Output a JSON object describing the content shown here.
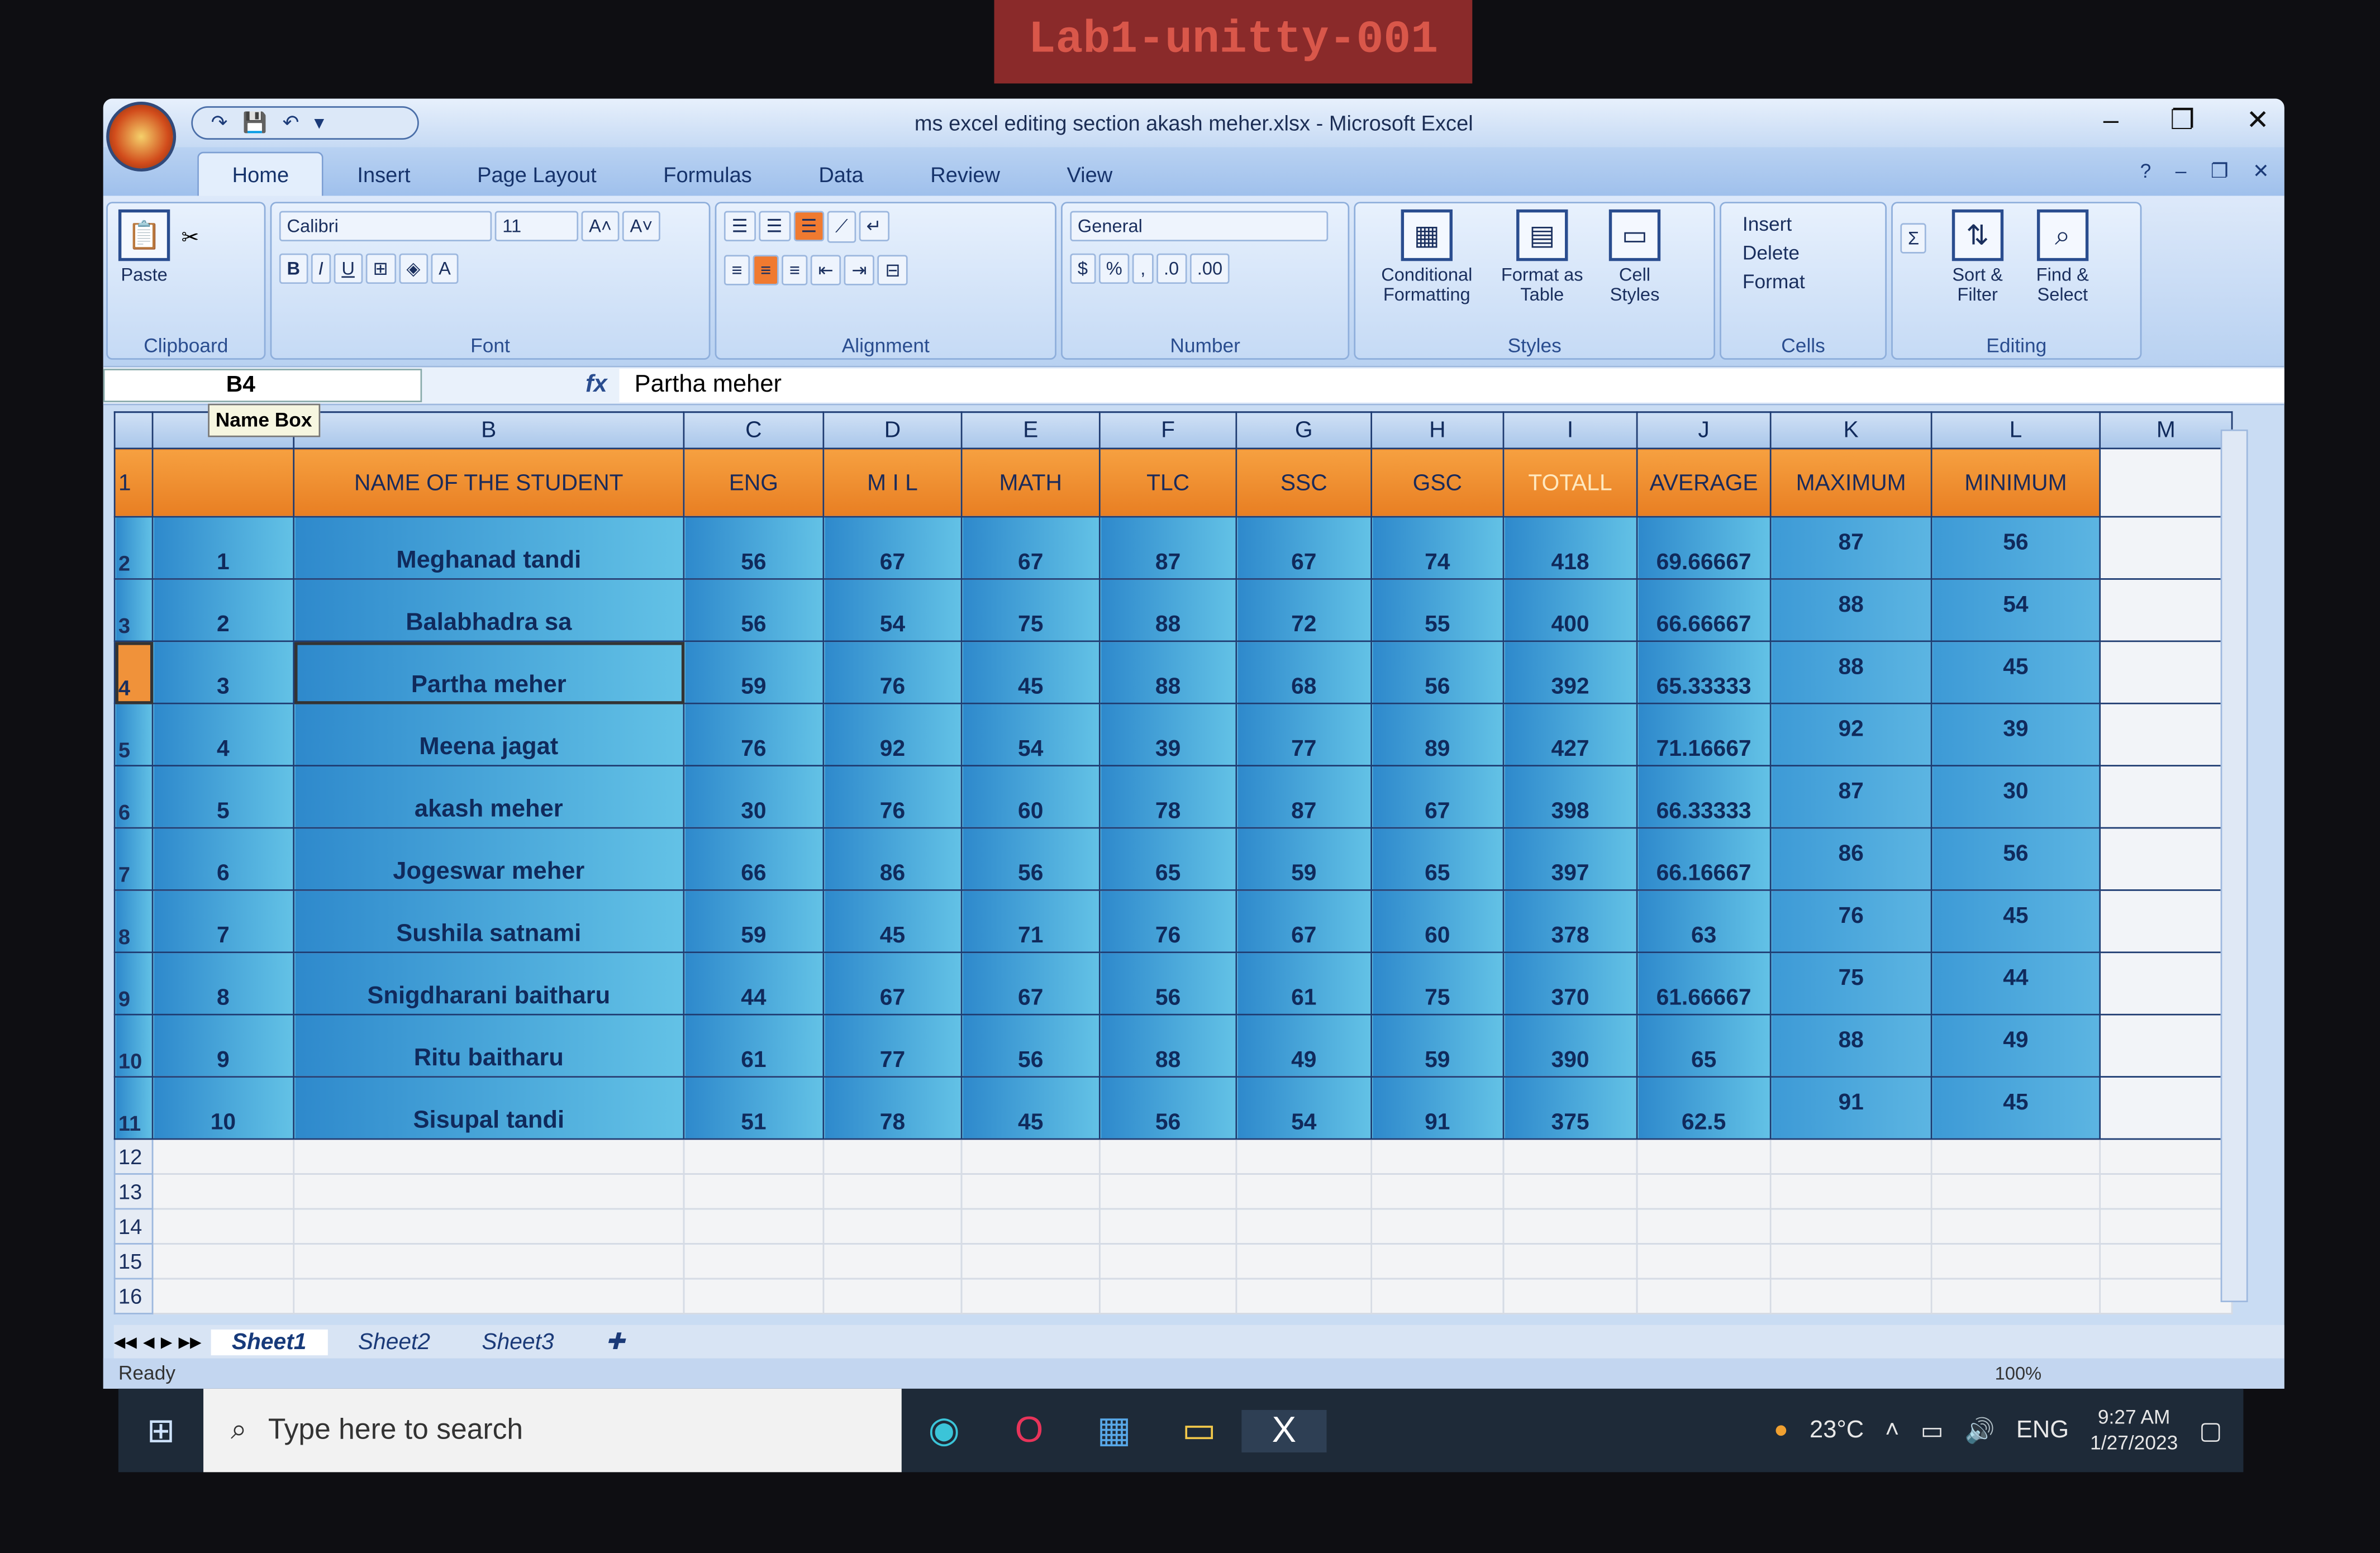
{
  "sticker": "Lab1-unitty-001",
  "window": {
    "title": "ms excel editing section akash meher.xlsx - Microsoft Excel"
  },
  "tabs": [
    "Home",
    "Insert",
    "Page Layout",
    "Formulas",
    "Data",
    "Review",
    "View"
  ],
  "ribbon": {
    "clipboard": {
      "paste": "Paste",
      "label": "Clipboard"
    },
    "font": {
      "name": "Calibri",
      "size": "11",
      "bold": "B",
      "italic": "I",
      "underline": "U",
      "label": "Font"
    },
    "alignment": {
      "label": "Alignment"
    },
    "number": {
      "format": "General",
      "currency": "$",
      "percent": "%",
      "comma": ",",
      "label": "Number"
    },
    "styles": {
      "conditional": "Conditional Formatting",
      "format_table": "Format as Table",
      "cell_styles": "Cell Styles",
      "label": "Styles"
    },
    "cells": {
      "insert": "Insert",
      "delete": "Delete",
      "format": "Format",
      "label": "Cells"
    },
    "editing": {
      "sum": "Σ",
      "sort": "Sort & Filter",
      "find": "Find & Select",
      "label": "Editing"
    }
  },
  "formula_bar": {
    "name_box": "B4",
    "tooltip": "Name Box",
    "fx": "fx",
    "value": "Partha meher"
  },
  "columns": [
    "",
    "B",
    "C",
    "D",
    "E",
    "F",
    "G",
    "H",
    "I",
    "J",
    "K",
    "L",
    "M"
  ],
  "header_row": [
    "",
    "NAME OF THE STUDENT",
    "ENG",
    "M I L",
    "MATH",
    "TLC",
    "SSC",
    "GSC",
    "TOTALL",
    "AVERAGE",
    "MAXIMUM",
    "MINIMUM"
  ],
  "rows": [
    [
      "1",
      "Meghanad tandi",
      "56",
      "67",
      "67",
      "87",
      "67",
      "74",
      "418",
      "69.66667",
      "87",
      "56"
    ],
    [
      "2",
      "Balabhadra sa",
      "56",
      "54",
      "75",
      "88",
      "72",
      "55",
      "400",
      "66.66667",
      "88",
      "54"
    ],
    [
      "3",
      "Partha meher",
      "59",
      "76",
      "45",
      "88",
      "68",
      "56",
      "392",
      "65.33333",
      "88",
      "45"
    ],
    [
      "4",
      "Meena jagat",
      "76",
      "92",
      "54",
      "39",
      "77",
      "89",
      "427",
      "71.16667",
      "92",
      "39"
    ],
    [
      "5",
      "akash meher",
      "30",
      "76",
      "60",
      "78",
      "87",
      "67",
      "398",
      "66.33333",
      "87",
      "30"
    ],
    [
      "6",
      "Jogeswar meher",
      "66",
      "86",
      "56",
      "65",
      "59",
      "65",
      "397",
      "66.16667",
      "86",
      "56"
    ],
    [
      "7",
      "Sushila satnami",
      "59",
      "45",
      "71",
      "76",
      "67",
      "60",
      "378",
      "63",
      "76",
      "45"
    ],
    [
      "8",
      "Snigdharani baitharu",
      "44",
      "67",
      "67",
      "56",
      "61",
      "75",
      "370",
      "61.66667",
      "75",
      "44"
    ],
    [
      "9",
      "Ritu baitharu",
      "61",
      "77",
      "56",
      "88",
      "49",
      "59",
      "390",
      "65",
      "88",
      "49"
    ],
    [
      "10",
      "Sisupal tandi",
      "51",
      "78",
      "45",
      "56",
      "54",
      "91",
      "375",
      "62.5",
      "91",
      "45"
    ]
  ],
  "row_numbers": [
    "1",
    "2",
    "3",
    "4",
    "5",
    "6",
    "7",
    "8",
    "9",
    "10",
    "11",
    "12",
    "13",
    "14",
    "15",
    "16"
  ],
  "sheets": [
    "Sheet1",
    "Sheet2",
    "Sheet3"
  ],
  "status": {
    "text": "Ready",
    "zoom": "100%"
  },
  "taskbar": {
    "search_placeholder": "Type here to search",
    "weather": "23°C",
    "lang": "ENG",
    "time": "9:27 AM",
    "date": "1/27/2023"
  },
  "colors": {
    "header_orange": "#f08a2a",
    "cell_blue": "#2e89cc",
    "excel_blue": "#c9dcf3"
  }
}
